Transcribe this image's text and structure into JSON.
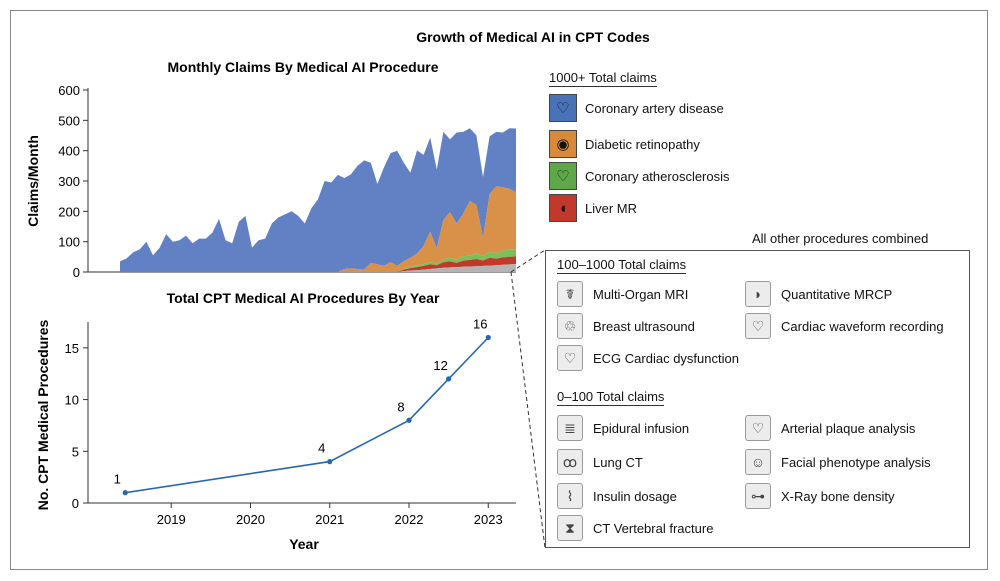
{
  "figure_title": "Growth of Medical AI in CPT Codes",
  "chart_data": [
    {
      "type": "area",
      "title": "Monthly Claims By Medical AI Procedure",
      "xlabel": "",
      "ylabel": "Claims/Month",
      "ylim": [
        0,
        600
      ],
      "yticks": [
        0,
        100,
        200,
        300,
        400,
        500,
        600
      ],
      "x": [
        0,
        1,
        2,
        3,
        4,
        5,
        6,
        7,
        8,
        9,
        10,
        11,
        12,
        13,
        14,
        15,
        16,
        17,
        18,
        19,
        20,
        21,
        22,
        23,
        24,
        25,
        26,
        27,
        28,
        29,
        30,
        31,
        32,
        33,
        34,
        35,
        36,
        37,
        38,
        39,
        40,
        41,
        42,
        43,
        44,
        45,
        46,
        47,
        48,
        49,
        50,
        51,
        52,
        53,
        54,
        55,
        56,
        57,
        58,
        59,
        60
      ],
      "stacked": true,
      "series": [
        {
          "name": "Other",
          "color": "#b4b4b4",
          "values": [
            0,
            0,
            0,
            0,
            0,
            0,
            0,
            0,
            0,
            0,
            0,
            0,
            0,
            0,
            0,
            0,
            0,
            0,
            0,
            0,
            0,
            0,
            0,
            0,
            0,
            0,
            0,
            0,
            0,
            0,
            0,
            0,
            0,
            0,
            0,
            0,
            0,
            0,
            0,
            0,
            0,
            0,
            0,
            3,
            5,
            6,
            8,
            10,
            12,
            14,
            15,
            16,
            17,
            18,
            19,
            20,
            21,
            22,
            24,
            25,
            26
          ]
        },
        {
          "name": "Liver MR",
          "color": "#c0392b",
          "values": [
            0,
            0,
            0,
            0,
            0,
            0,
            0,
            0,
            0,
            0,
            0,
            0,
            0,
            0,
            0,
            0,
            0,
            0,
            0,
            0,
            0,
            0,
            0,
            0,
            0,
            0,
            0,
            0,
            0,
            0,
            0,
            0,
            0,
            0,
            0,
            0,
            0,
            0,
            0,
            0,
            0,
            0,
            0,
            5,
            8,
            10,
            12,
            15,
            10,
            18,
            20,
            14,
            20,
            22,
            24,
            18,
            26,
            22,
            24,
            25,
            25
          ]
        },
        {
          "name": "Coronary atherosclerosis",
          "color": "#7bbf5a",
          "values": [
            0,
            0,
            0,
            0,
            0,
            0,
            0,
            0,
            0,
            0,
            0,
            0,
            0,
            0,
            0,
            0,
            0,
            0,
            0,
            0,
            0,
            0,
            0,
            0,
            0,
            0,
            0,
            0,
            0,
            0,
            0,
            0,
            0,
            0,
            0,
            0,
            0,
            0,
            0,
            0,
            0,
            0,
            0,
            2,
            4,
            5,
            6,
            8,
            6,
            10,
            12,
            10,
            15,
            14,
            18,
            15,
            20,
            18,
            22,
            24,
            22
          ]
        },
        {
          "name": "Diabetic retinopathy",
          "color": "#d9914a",
          "values": [
            0,
            0,
            0,
            0,
            0,
            0,
            0,
            0,
            0,
            0,
            0,
            0,
            0,
            0,
            0,
            0,
            0,
            0,
            0,
            0,
            0,
            0,
            0,
            0,
            0,
            0,
            0,
            0,
            0,
            0,
            0,
            0,
            0,
            0,
            10,
            12,
            10,
            8,
            30,
            25,
            20,
            32,
            20,
            25,
            30,
            40,
            60,
            100,
            50,
            130,
            150,
            120,
            140,
            180,
            160,
            60,
            190,
            220,
            210,
            200,
            190
          ]
        },
        {
          "name": "Coronary artery disease",
          "color": "#6280c4",
          "values": [
            35,
            45,
            65,
            75,
            100,
            55,
            80,
            125,
            100,
            105,
            120,
            95,
            110,
            110,
            130,
            175,
            105,
            95,
            165,
            185,
            80,
            105,
            110,
            160,
            180,
            190,
            200,
            185,
            160,
            210,
            240,
            300,
            295,
            320,
            300,
            310,
            340,
            360,
            330,
            265,
            325,
            360,
            380,
            325,
            280,
            340,
            300,
            310,
            260,
            290,
            240,
            300,
            270,
            240,
            230,
            200,
            190,
            180,
            180,
            200,
            210
          ]
        }
      ]
    },
    {
      "type": "line",
      "title": "Total CPT Medical AI Procedures By Year",
      "xlabel": "Year",
      "ylabel": "No. CPT Medical Procedures",
      "xlim": [
        2017.95,
        2023.35
      ],
      "ylim": [
        0,
        17.5
      ],
      "xticks": [
        "2019",
        "2020",
        "2021",
        "2022",
        "2023"
      ],
      "yticks": [
        0,
        5,
        10,
        15
      ],
      "x": [
        2018.42,
        2021.0,
        2022.0,
        2022.5,
        2023.0
      ],
      "values": [
        1,
        4,
        8,
        12,
        16
      ],
      "labels": [
        "1",
        "4",
        "8",
        "12",
        "16"
      ],
      "color": "#2767b0"
    }
  ],
  "legend": {
    "main_heading": "1000+ Total claims",
    "main_items": [
      {
        "label": "Coronary artery disease",
        "color": "#4a72b8",
        "icon": "heart-icon",
        "glyph": "♡"
      },
      {
        "label": "Diabetic retinopathy",
        "color": "#d9893a",
        "icon": "eye-icon",
        "glyph": "◉"
      },
      {
        "label": "Coronary atherosclerosis",
        "color": "#5fa84a",
        "icon": "heart-icon",
        "glyph": "♡"
      },
      {
        "label": "Liver MR",
        "color": "#c0392b",
        "icon": "liver-icon",
        "glyph": "◖"
      }
    ],
    "other_label": "All other procedures combined",
    "group1_heading": "100–1000 Total claims",
    "group1_items": [
      {
        "label": "Multi-Organ MRI",
        "icon": "caduceus-icon",
        "glyph": "☤"
      },
      {
        "label": "Quantitative MRCP",
        "icon": "organ-icon",
        "glyph": "◗"
      },
      {
        "label": "Breast ultrasound",
        "icon": "ribbon-icon",
        "glyph": "♲"
      },
      {
        "label": "Cardiac waveform recording",
        "icon": "heart-icon",
        "glyph": "♡"
      },
      {
        "label": "ECG Cardiac dysfunction",
        "icon": "heart-icon",
        "glyph": "♡"
      }
    ],
    "group2_heading": "0–100 Total claims",
    "group2_items": [
      {
        "label": "Epidural infusion",
        "icon": "spine-icon",
        "glyph": "≣"
      },
      {
        "label": "Arterial plaque analysis",
        "icon": "heart-icon",
        "glyph": "♡"
      },
      {
        "label": "Lung CT",
        "icon": "lungs-icon",
        "glyph": "ꝏ"
      },
      {
        "label": "Facial phenotype analysis",
        "icon": "face-icon",
        "glyph": "☺"
      },
      {
        "label": "Insulin dosage",
        "icon": "syringe-icon",
        "glyph": "⌇"
      },
      {
        "label": "X-Ray bone density",
        "icon": "bone-icon",
        "glyph": "⊶"
      },
      {
        "label": "CT Vertebral fracture",
        "icon": "vertebra-icon",
        "glyph": "⧗"
      }
    ]
  }
}
